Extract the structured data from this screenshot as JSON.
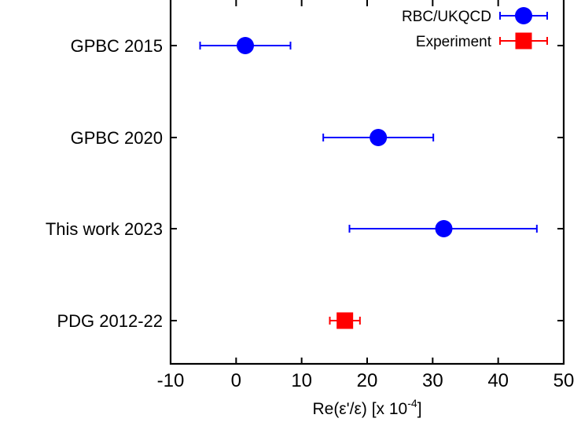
{
  "chart_data": {
    "type": "scatter",
    "xlabel": "Re(ε'/ε) [x 10",
    "xlabel_sup": "-4",
    "xlabel_suffix": "]",
    "xlim": [
      -10,
      50
    ],
    "xticks": [
      -10,
      0,
      10,
      20,
      30,
      40,
      50
    ],
    "categories": [
      "GPBC 2015",
      "GPBC 2020",
      "This work 2023",
      "PDG 2012-22"
    ],
    "legend_position": "top-right",
    "series": [
      {
        "name": "RBC/UKQCD",
        "color": "#0000ff",
        "marker": "circle",
        "points": [
          {
            "category": "GPBC 2015",
            "value": 1.4,
            "err_low": 6.9,
            "err_high": 6.9
          },
          {
            "category": "GPBC 2020",
            "value": 21.7,
            "err_low": 8.4,
            "err_high": 8.4
          },
          {
            "category": "This work 2023",
            "value": 31.7,
            "err_low": 14.4,
            "err_high": 14.2
          }
        ]
      },
      {
        "name": "Experiment",
        "color": "#ff0000",
        "marker": "square",
        "points": [
          {
            "category": "PDG 2012-22",
            "value": 16.6,
            "err_low": 2.3,
            "err_high": 2.3
          }
        ]
      }
    ]
  }
}
